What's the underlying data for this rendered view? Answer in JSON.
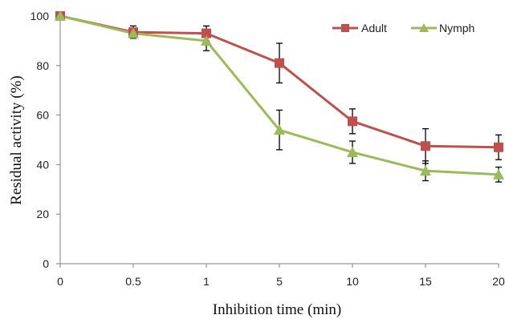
{
  "chart_data": {
    "type": "line",
    "categories": [
      "0",
      "0.5",
      "1",
      "5",
      "10",
      "15",
      "20"
    ],
    "xlabel": "Inhibition time (min)",
    "ylabel": "Residual activity  (%)",
    "ylim": [
      0,
      100
    ],
    "yticks": [
      "0",
      "20",
      "40",
      "60",
      "80",
      "100"
    ],
    "grid": false,
    "legend_position": "top-right",
    "series": [
      {
        "name": "Adult",
        "color": "#c0504d",
        "marker": "square",
        "values": [
          100,
          93.5,
          93,
          81,
          57.5,
          47.5,
          47
        ],
        "errors": [
          0,
          2.5,
          3,
          8,
          5,
          7,
          5
        ]
      },
      {
        "name": "Nymph",
        "color": "#9bbb59",
        "marker": "triangle",
        "values": [
          100,
          93,
          90,
          54,
          45,
          37.5,
          36
        ],
        "errors": [
          0,
          0,
          4,
          8,
          4.5,
          4,
          3
        ]
      }
    ]
  }
}
